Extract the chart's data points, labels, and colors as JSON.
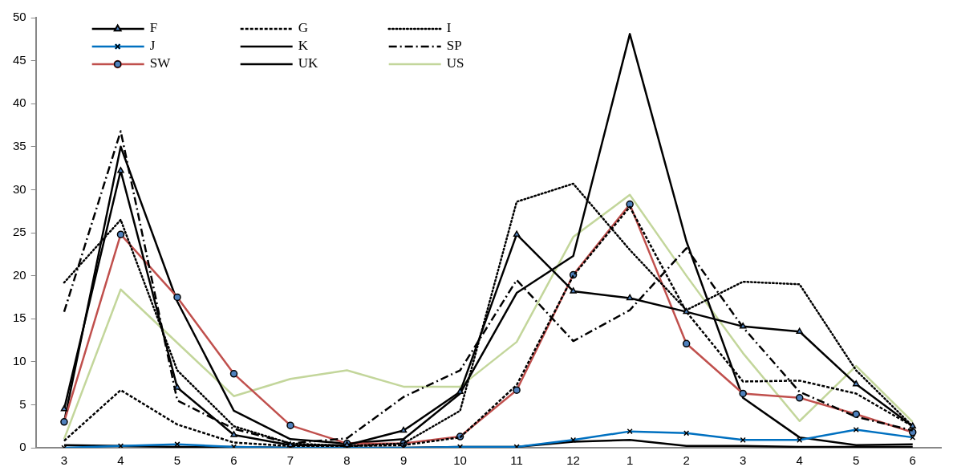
{
  "chart_data": {
    "type": "line",
    "categories": [
      "3",
      "4",
      "5",
      "6",
      "7",
      "8",
      "9",
      "10",
      "11",
      "12",
      "1",
      "2",
      "3",
      "4",
      "5",
      "6"
    ],
    "ylim": [
      0,
      50
    ],
    "yticks": [
      0,
      5,
      10,
      15,
      20,
      25,
      30,
      35,
      40,
      45,
      50
    ],
    "grid": false,
    "legend": "top left",
    "series": [
      {
        "name": "F",
        "color": "#000000",
        "marker": "triangle",
        "line_style": "solid",
        "values": [
          4.5,
          32.2,
          7,
          1.5,
          0.3,
          0.3,
          2,
          6.5,
          24.8,
          18.2,
          17.4,
          15.8,
          14.1,
          13.5,
          7.4,
          2.5
        ]
      },
      {
        "name": "G",
        "color": "#000000",
        "marker": "none",
        "line_style": "dashed",
        "values": [
          0.8,
          6.7,
          2.7,
          0.6,
          0.2,
          0.2,
          0.3,
          1.2,
          7.3,
          20,
          28,
          15.8,
          7.7,
          7.8,
          6.3,
          2.5
        ]
      },
      {
        "name": "I",
        "color": "#000000",
        "marker": "none",
        "line_style": "dotted",
        "values": [
          19.2,
          26.5,
          9,
          2.5,
          0.5,
          0.2,
          0.5,
          4.3,
          28.6,
          30.7,
          23,
          16,
          19.3,
          19,
          9,
          2.5
        ]
      },
      {
        "name": "J",
        "color": "#0070c0",
        "marker": "cross",
        "line_style": "solid",
        "values": [
          0,
          0.2,
          0.4,
          0.1,
          0,
          0,
          0,
          0.1,
          0.1,
          0.9,
          1.9,
          1.7,
          0.9,
          0.9,
          2.1,
          1.2
        ]
      },
      {
        "name": "K",
        "color": "#000000",
        "line_style": "solid",
        "values": [
          0.3,
          0.2,
          0.1,
          0.1,
          0,
          0,
          0,
          0.1,
          0.1,
          0.7,
          0.9,
          0.2,
          0.2,
          0.1,
          0.1,
          0.1
        ]
      },
      {
        "name": "SP",
        "color": "#000000",
        "marker": "none",
        "line_style": "dashdot",
        "values": [
          15.8,
          36.8,
          5.5,
          2.2,
          0.5,
          1.1,
          5.9,
          9,
          19.5,
          12.4,
          16,
          23.2,
          14,
          6.5,
          3.6,
          2
        ]
      },
      {
        "name": "SW",
        "color": "#c0504d",
        "marker": "circle",
        "line_style": "solid",
        "values": [
          3,
          24.8,
          17.5,
          8.6,
          2.6,
          0.5,
          0.5,
          1.3,
          6.7,
          20.1,
          28.3,
          12.1,
          6.3,
          5.8,
          3.9,
          1.8
        ]
      },
      {
        "name": "UK",
        "color": "#000000",
        "marker": "none",
        "line_style": "solid",
        "values": [
          3,
          35,
          17,
          4.3,
          1,
          0.5,
          1,
          6.3,
          18,
          22.3,
          48.1,
          24,
          5.8,
          1.2,
          0.3,
          0.4
        ]
      },
      {
        "name": "US",
        "color": "#c3d69b",
        "marker": "none",
        "line_style": "solid",
        "values": [
          1,
          18.4,
          12.2,
          6,
          8,
          9,
          7.1,
          7.1,
          12.3,
          24.5,
          29.4,
          20,
          11,
          3.1,
          9.5,
          3
        ]
      }
    ]
  }
}
